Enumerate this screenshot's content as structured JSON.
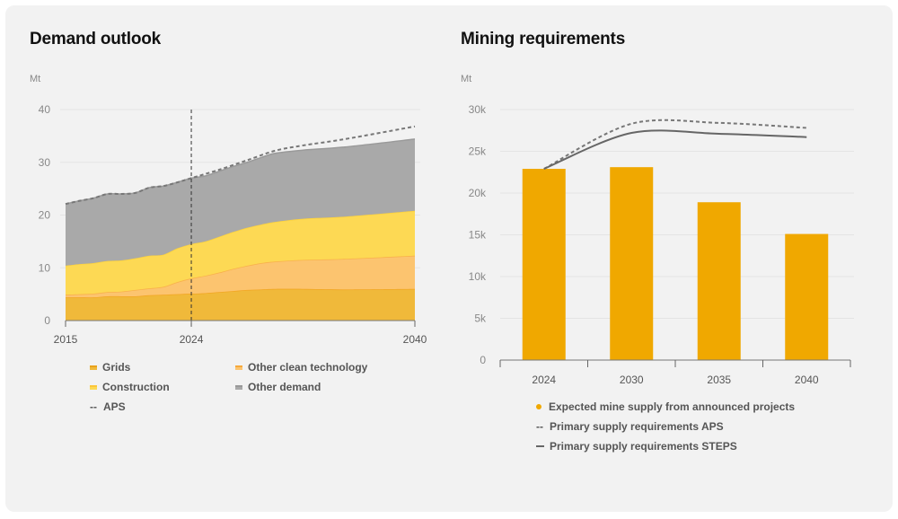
{
  "left": {
    "title": "Demand outlook",
    "unit": "Mt"
  },
  "right": {
    "title": "Mining requirements",
    "unit": "Mt"
  },
  "chart_data": [
    {
      "type": "area",
      "title": "Demand outlook",
      "ylabel": "Mt",
      "xlabel": "",
      "stacked": true,
      "ylim": [
        0,
        40
      ],
      "yticks": [
        0,
        10,
        20,
        30,
        40
      ],
      "ytick_labels": [
        "0",
        "10",
        "20",
        "30",
        "40"
      ],
      "xlim": [
        2015,
        2040
      ],
      "xticks": [
        2015,
        2024,
        2040
      ],
      "xtick_labels": [
        "2015",
        "2024",
        "2040"
      ],
      "marker_line": {
        "x": 2024,
        "style": "dashed"
      },
      "grid": true,
      "legend_placement": "bottom",
      "x": [
        2015,
        2016,
        2017,
        2018,
        2019,
        2020,
        2021,
        2022,
        2023,
        2024,
        2025,
        2026,
        2027,
        2028,
        2029,
        2030,
        2032,
        2035,
        2040
      ],
      "series": [
        {
          "name": "Grids",
          "color": "#f0b93a",
          "values": [
            4.4,
            4.4,
            4.4,
            4.6,
            4.6,
            4.6,
            4.8,
            4.9,
            5.0,
            5.1,
            5.2,
            5.4,
            5.6,
            5.8,
            5.9,
            6.0,
            6.0,
            5.9,
            6.0
          ]
        },
        {
          "name": "Other clean technology",
          "color": "#fcc46f",
          "values": [
            0.5,
            0.6,
            0.7,
            0.8,
            0.9,
            1.2,
            1.3,
            1.5,
            2.3,
            2.9,
            3.3,
            3.7,
            4.2,
            4.6,
            5.0,
            5.2,
            5.5,
            5.8,
            6.3
          ]
        },
        {
          "name": "Construction",
          "color": "#fdd954",
          "values": [
            5.5,
            5.7,
            5.8,
            5.9,
            5.9,
            6.0,
            6.2,
            6.1,
            6.4,
            6.5,
            6.5,
            6.8,
            7.0,
            7.2,
            7.3,
            7.5,
            7.8,
            8.0,
            8.5
          ]
        },
        {
          "name": "Other demand",
          "color": "#a9a9a9",
          "values": [
            11.7,
            12.0,
            12.3,
            12.7,
            12.6,
            12.4,
            12.9,
            13.0,
            12.5,
            12.5,
            12.4,
            12.4,
            12.4,
            12.4,
            12.7,
            13.0,
            13.0,
            13.2,
            13.6
          ]
        }
      ],
      "lines": [
        {
          "name": "APS",
          "style": "dashed",
          "color": "#777777",
          "x": [
            2015,
            2016,
            2017,
            2018,
            2019,
            2020,
            2021,
            2022,
            2023,
            2024,
            2026,
            2028,
            2030,
            2032,
            2035,
            2040
          ],
          "values": [
            22.1,
            22.7,
            23.2,
            24.0,
            24.0,
            24.2,
            25.2,
            25.5,
            26.2,
            27.0,
            28.6,
            30.4,
            32.2,
            33.2,
            34.4,
            36.8
          ]
        }
      ],
      "legend": [
        "Grids",
        "Other clean technology",
        "Construction",
        "Other demand",
        "APS"
      ]
    },
    {
      "type": "bar",
      "title": "Mining requirements",
      "ylabel": "Mt",
      "xlabel": "",
      "ylim": [
        0,
        30000
      ],
      "yticks": [
        0,
        5000,
        10000,
        15000,
        20000,
        25000,
        30000
      ],
      "ytick_labels": [
        "0",
        "5k",
        "10k",
        "15k",
        "20k",
        "25k",
        "30k"
      ],
      "categories": [
        "2024",
        "2030",
        "2035",
        "2040"
      ],
      "grid": true,
      "legend_placement": "bottom",
      "series": [
        {
          "name": "Expected mine supply from announced projects",
          "kind": "bar",
          "color": "#f0a800",
          "values": [
            22900,
            23100,
            18900,
            15100
          ]
        },
        {
          "name": "Primary supply requirements APS",
          "kind": "line",
          "style": "dashed",
          "color": "#777777",
          "values": [
            22900,
            28300,
            28400,
            27800
          ]
        },
        {
          "name": "Primary supply requirements STEPS",
          "kind": "line",
          "style": "solid",
          "color": "#666666",
          "values": [
            22900,
            27200,
            27100,
            26700
          ]
        }
      ],
      "legend": [
        "Expected mine supply from announced projects",
        "Primary supply requirements APS",
        "Primary supply requirements STEPS"
      ]
    }
  ]
}
